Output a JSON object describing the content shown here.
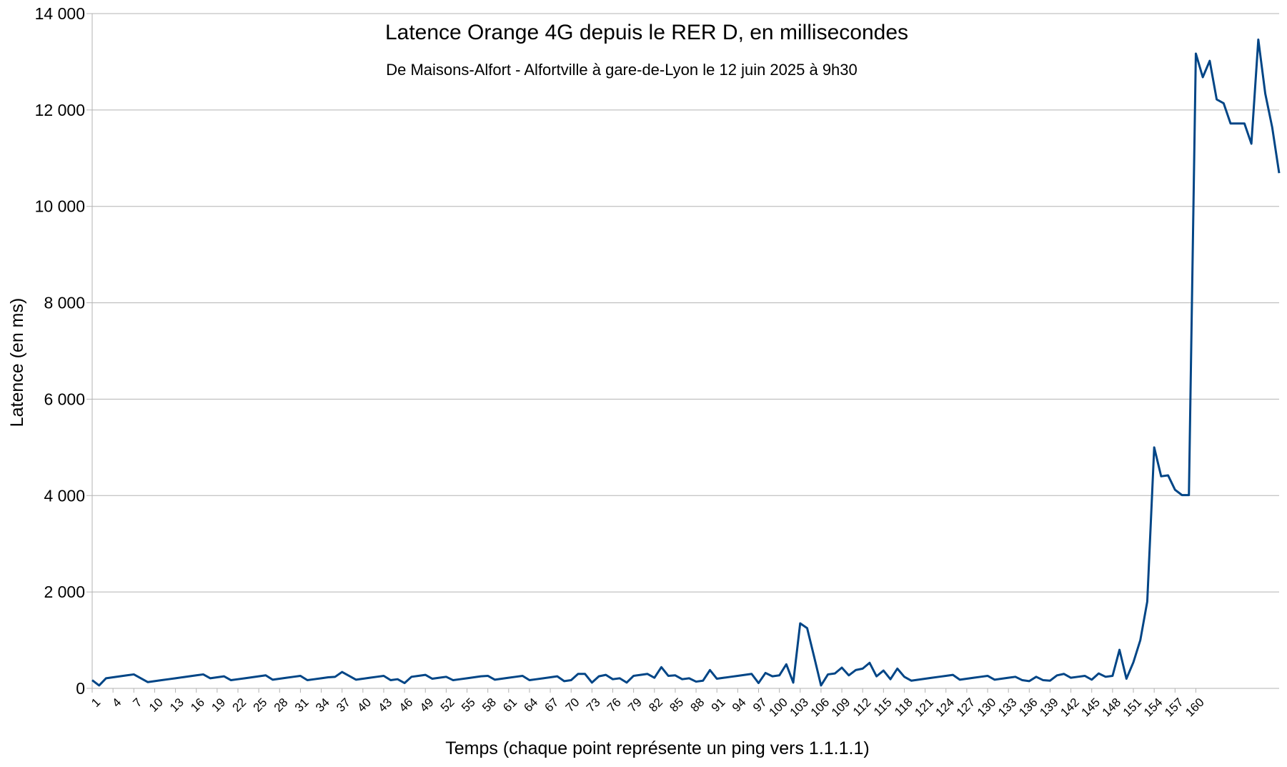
{
  "chart_data": {
    "type": "line",
    "title": "Latence Orange 4G depuis le RER D, en millisecondes",
    "subtitle": "De Maisons-Alfort - Alfortville à gare-de-Lyon le 12 juin 2025 à 9h30",
    "xlabel": "Temps (chaque point représente un ping vers 1.1.1.1)",
    "ylabel": "Latence (en ms)",
    "ylim": [
      0,
      14000
    ],
    "yticks": [
      0,
      2000,
      4000,
      6000,
      8000,
      10000,
      12000,
      14000
    ],
    "ytick_labels": [
      "0",
      "2 000",
      "4 000",
      "6 000",
      "8 000",
      "10 000",
      "12 000",
      "14 000"
    ],
    "xticks": [
      1,
      4,
      7,
      10,
      13,
      16,
      19,
      22,
      25,
      28,
      31,
      34,
      37,
      40,
      43,
      46,
      49,
      52,
      55,
      58,
      61,
      64,
      67,
      70,
      73,
      76,
      79,
      82,
      85,
      88,
      91,
      94,
      97,
      100,
      103,
      106,
      109,
      112,
      115,
      118,
      121,
      124,
      127,
      130,
      133,
      136,
      139,
      142,
      145,
      148,
      151,
      154,
      157,
      160
    ],
    "grid": "horizontal",
    "legend": "none",
    "line_color": "#004586",
    "series": [
      {
        "values": [
          170,
          60,
          210,
          230,
          250,
          270,
          290,
          210,
          130,
          150,
          170,
          190,
          210,
          230,
          250,
          270,
          290,
          210,
          230,
          250,
          170,
          190,
          210,
          230,
          250,
          270,
          180,
          200,
          220,
          240,
          260,
          170,
          190,
          210,
          230,
          240,
          340,
          260,
          180,
          200,
          220,
          240,
          260,
          170,
          190,
          110,
          240,
          260,
          280,
          200,
          220,
          240,
          170,
          190,
          210,
          230,
          250,
          260,
          180,
          200,
          220,
          240,
          260,
          170,
          190,
          210,
          230,
          250,
          150,
          170,
          300,
          300,
          120,
          250,
          280,
          190,
          210,
          120,
          260,
          280,
          300,
          220,
          440,
          260,
          270,
          190,
          210,
          140,
          160,
          380,
          200,
          220,
          240,
          260,
          280,
          300,
          110,
          320,
          250,
          270,
          500,
          120,
          1350,
          1250,
          660,
          60,
          290,
          310,
          430,
          270,
          380,
          410,
          530,
          250,
          370,
          190,
          410,
          240,
          160,
          180,
          200,
          220,
          240,
          260,
          280,
          180,
          200,
          220,
          240,
          260,
          180,
          200,
          220,
          240,
          170,
          150,
          240,
          170,
          160,
          270,
          300,
          220,
          240,
          260,
          180,
          310,
          240,
          260,
          800,
          200,
          540,
          1000,
          1800,
          5000,
          4400,
          4420,
          4120,
          4010,
          4010,
          13170,
          12680,
          13020,
          12220,
          12140,
          11720,
          11720,
          11720,
          11300,
          13460,
          12340,
          11640,
          10690
        ]
      }
    ]
  }
}
